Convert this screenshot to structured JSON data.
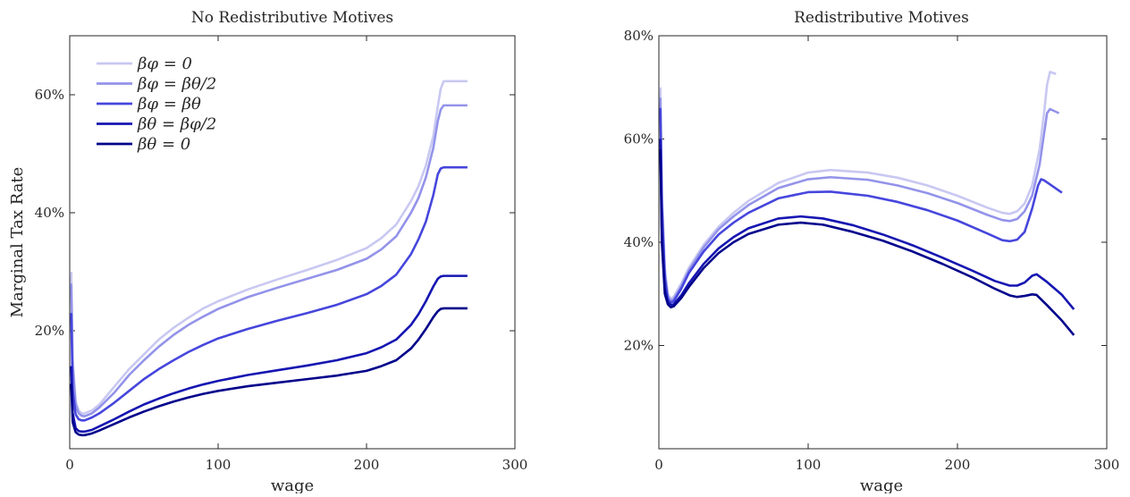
{
  "chart_data": [
    {
      "type": "line",
      "title": "No Redistributive Motives",
      "xlabel": "wage",
      "ylabel": "Marginal Tax Rate",
      "xlim": [
        0,
        300
      ],
      "ylim": [
        0,
        70
      ],
      "xticks": [
        0,
        100,
        200,
        300
      ],
      "xtick_labels": [
        "0",
        "100",
        "200",
        "300"
      ],
      "yticks": [
        20,
        40,
        60
      ],
      "ytick_labels": [
        "20%",
        "40%",
        "60%"
      ],
      "grid": false,
      "legend_position": "top-left",
      "series": [
        {
          "name": "βφ = 0",
          "color": "#c8c8f2",
          "x": [
            1,
            2,
            4,
            6,
            8,
            10,
            15,
            20,
            30,
            40,
            50,
            60,
            70,
            80,
            90,
            100,
            120,
            140,
            160,
            180,
            200,
            210,
            220,
            230,
            235,
            240,
            245,
            248,
            250,
            252,
            268
          ],
          "y": [
            30,
            15,
            8,
            6.5,
            6.0,
            6.0,
            6.5,
            7.5,
            10.5,
            13.5,
            16.0,
            18.5,
            20.5,
            22.2,
            23.8,
            25.0,
            27.0,
            28.7,
            30.3,
            32.0,
            34.0,
            35.7,
            38.0,
            42.0,
            44.5,
            48.0,
            53.0,
            58.0,
            61.0,
            62.3,
            62.3
          ]
        },
        {
          "name": "βφ = βθ/2",
          "color": "#9393ea",
          "x": [
            1,
            2,
            4,
            6,
            8,
            10,
            15,
            20,
            30,
            40,
            50,
            60,
            70,
            80,
            90,
            100,
            120,
            140,
            160,
            180,
            200,
            210,
            220,
            230,
            235,
            240,
            245,
            248,
            250,
            252,
            268
          ],
          "y": [
            28,
            14,
            7.5,
            6.0,
            5.6,
            5.5,
            6.0,
            7.0,
            9.5,
            12.5,
            15.0,
            17.3,
            19.3,
            21.0,
            22.4,
            23.7,
            25.7,
            27.3,
            28.8,
            30.3,
            32.2,
            33.8,
            36.0,
            40.0,
            42.5,
            46.0,
            51.0,
            55.5,
            57.5,
            58.2,
            58.2
          ]
        },
        {
          "name": "βφ = βθ",
          "color": "#4646dd",
          "x": [
            1,
            2,
            4,
            6,
            8,
            10,
            15,
            20,
            30,
            40,
            50,
            60,
            70,
            80,
            90,
            100,
            120,
            140,
            160,
            180,
            200,
            210,
            220,
            230,
            235,
            240,
            245,
            248,
            250,
            252,
            268
          ],
          "y": [
            23,
            10,
            5.8,
            5.0,
            4.8,
            4.8,
            5.3,
            6.0,
            7.8,
            9.8,
            11.8,
            13.5,
            15.0,
            16.4,
            17.6,
            18.7,
            20.3,
            21.7,
            23.0,
            24.4,
            26.2,
            27.6,
            29.5,
            33.0,
            35.5,
            38.5,
            43.0,
            46.5,
            47.5,
            47.7,
            47.7
          ]
        },
        {
          "name": "βθ = βφ/2",
          "color": "#1515b2",
          "x": [
            1,
            2,
            4,
            6,
            8,
            10,
            15,
            20,
            30,
            40,
            50,
            60,
            70,
            80,
            90,
            100,
            120,
            140,
            160,
            180,
            200,
            210,
            220,
            230,
            235,
            240,
            245,
            248,
            250,
            252,
            268
          ],
          "y": [
            14,
            6.0,
            3.5,
            3.0,
            2.9,
            2.9,
            3.2,
            3.8,
            5.0,
            6.3,
            7.5,
            8.5,
            9.4,
            10.2,
            10.9,
            11.5,
            12.5,
            13.3,
            14.1,
            15.0,
            16.2,
            17.2,
            18.5,
            21.0,
            22.8,
            25.0,
            27.5,
            28.8,
            29.2,
            29.3,
            29.3
          ]
        },
        {
          "name": "βθ = 0",
          "color": "#00008b",
          "x": [
            1,
            2,
            4,
            6,
            8,
            10,
            15,
            20,
            30,
            40,
            50,
            60,
            70,
            80,
            90,
            100,
            120,
            140,
            160,
            180,
            200,
            210,
            220,
            230,
            235,
            240,
            245,
            248,
            250,
            252,
            268
          ],
          "y": [
            11,
            4.5,
            2.8,
            2.4,
            2.3,
            2.3,
            2.6,
            3.1,
            4.2,
            5.3,
            6.3,
            7.2,
            8.0,
            8.7,
            9.3,
            9.8,
            10.6,
            11.2,
            11.8,
            12.4,
            13.2,
            14.0,
            15.0,
            17.0,
            18.5,
            20.3,
            22.3,
            23.3,
            23.7,
            23.8,
            23.8
          ]
        }
      ]
    },
    {
      "type": "line",
      "title": "Redistributive Motives",
      "xlabel": "wage",
      "ylabel": "",
      "xlim": [
        0,
        300
      ],
      "ylim": [
        0,
        80
      ],
      "xticks": [
        0,
        100,
        200,
        300
      ],
      "xtick_labels": [
        "0",
        "100",
        "200",
        "300"
      ],
      "yticks": [
        20,
        40,
        60,
        80
      ],
      "ytick_labels": [
        "20%",
        "40%",
        "60%",
        "80%"
      ],
      "grid": false,
      "series": [
        {
          "name": "βφ = 0",
          "color": "#c8c8f2",
          "x": [
            1,
            2,
            4,
            6,
            8,
            10,
            15,
            20,
            30,
            40,
            50,
            60,
            80,
            100,
            115,
            140,
            160,
            180,
            200,
            220,
            230,
            235,
            240,
            245,
            250,
            255,
            258,
            260,
            262,
            266
          ],
          "y": [
            70,
            50,
            35,
            30,
            29,
            29.5,
            32.0,
            35.0,
            39.5,
            43.0,
            45.7,
            48.0,
            51.5,
            53.5,
            54.0,
            53.5,
            52.5,
            51.0,
            49.0,
            46.7,
            45.7,
            45.5,
            46.0,
            47.5,
            51.0,
            58.0,
            65.0,
            70.5,
            73.0,
            72.6
          ]
        },
        {
          "name": "βφ = βθ/2",
          "color": "#9393ea",
          "x": [
            1,
            2,
            4,
            6,
            8,
            10,
            15,
            20,
            30,
            40,
            50,
            60,
            80,
            100,
            115,
            140,
            160,
            180,
            200,
            220,
            230,
            235,
            240,
            245,
            250,
            255,
            258,
            260,
            262,
            268
          ],
          "y": [
            68,
            48,
            34,
            29.5,
            28.7,
            29.0,
            31.5,
            34.5,
            39.0,
            42.5,
            45.0,
            47.2,
            50.5,
            52.2,
            52.6,
            52.1,
            51.0,
            49.5,
            47.6,
            45.3,
            44.3,
            44.1,
            44.5,
            46.0,
            49.0,
            55.0,
            61.0,
            65.0,
            65.8,
            65.0
          ]
        },
        {
          "name": "βφ = βθ",
          "color": "#4646dd",
          "x": [
            1,
            2,
            4,
            6,
            8,
            10,
            15,
            20,
            30,
            40,
            50,
            60,
            80,
            100,
            115,
            140,
            160,
            180,
            200,
            220,
            230,
            235,
            240,
            245,
            250,
            254,
            256,
            258,
            270
          ],
          "y": [
            66,
            47,
            33,
            29.0,
            28.3,
            28.6,
            31.0,
            34.0,
            38.2,
            41.5,
            43.8,
            45.7,
            48.5,
            49.7,
            49.8,
            49.0,
            47.8,
            46.2,
            44.2,
            41.7,
            40.4,
            40.2,
            40.5,
            42.0,
            46.5,
            51.0,
            52.2,
            52.0,
            49.6
          ]
        },
        {
          "name": "βθ = βφ/2",
          "color": "#1515b2",
          "x": [
            1,
            2,
            4,
            6,
            8,
            10,
            15,
            20,
            30,
            40,
            50,
            60,
            80,
            95,
            110,
            130,
            150,
            170,
            190,
            210,
            225,
            235,
            240,
            245,
            250,
            253,
            260,
            270,
            278
          ],
          "y": [
            60,
            42,
            31,
            28.5,
            27.8,
            28.0,
            29.7,
            32.0,
            35.8,
            38.8,
            41.0,
            42.7,
            44.6,
            45.0,
            44.6,
            43.3,
            41.5,
            39.4,
            37.0,
            34.5,
            32.5,
            31.6,
            31.6,
            32.2,
            33.5,
            33.8,
            32.3,
            29.8,
            27.0
          ]
        },
        {
          "name": "βθ = 0",
          "color": "#00008b",
          "x": [
            1,
            2,
            4,
            6,
            8,
            10,
            15,
            20,
            30,
            40,
            50,
            60,
            80,
            95,
            110,
            130,
            150,
            170,
            190,
            210,
            225,
            235,
            240,
            245,
            250,
            253,
            260,
            270,
            278
          ],
          "y": [
            58,
            40,
            30,
            28.0,
            27.4,
            27.6,
            29.2,
            31.3,
            35.0,
            37.9,
            40.0,
            41.6,
            43.4,
            43.8,
            43.4,
            42.0,
            40.3,
            38.2,
            35.8,
            33.2,
            31.0,
            29.7,
            29.4,
            29.6,
            29.9,
            29.8,
            27.8,
            24.8,
            22.0
          ]
        }
      ]
    }
  ]
}
